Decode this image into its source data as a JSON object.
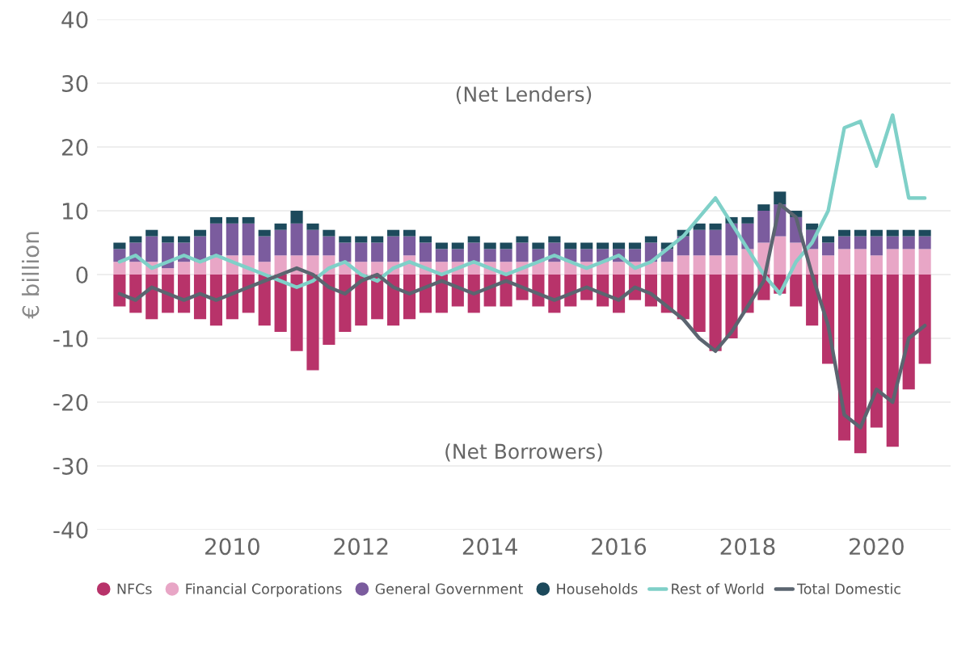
{
  "chart_data": {
    "type": "bar",
    "stacked": true,
    "ylabel": "€ billion",
    "annotations": [
      "(Net Lenders)",
      "(Net Borrowers)"
    ],
    "x": [
      2008.25,
      2008.5,
      2008.75,
      2009,
      2009.25,
      2009.5,
      2009.75,
      2010,
      2010.25,
      2010.5,
      2010.75,
      2011,
      2011.25,
      2011.5,
      2011.75,
      2012,
      2012.25,
      2012.5,
      2012.75,
      2013,
      2013.25,
      2013.5,
      2013.75,
      2014,
      2014.25,
      2014.5,
      2014.75,
      2015,
      2015.25,
      2015.5,
      2015.75,
      2016,
      2016.25,
      2016.5,
      2016.75,
      2017,
      2017.25,
      2017.5,
      2017.75,
      2018,
      2018.25,
      2018.5,
      2018.75,
      2019,
      2019.25,
      2019.5,
      2019.75,
      2020,
      2020.25,
      2020.5,
      2020.75
    ],
    "xlim": [
      2007.9,
      2021.15
    ],
    "xticks": [
      2010,
      2012,
      2014,
      2016,
      2018,
      2020
    ],
    "ylim": [
      -40,
      40
    ],
    "yticks": [
      -40,
      -30,
      -20,
      -10,
      0,
      10,
      20,
      30,
      40
    ],
    "grid": "y",
    "legend": "bottom",
    "series": [
      {
        "name": "NFCs",
        "color": "#b8336a",
        "values": [
          -5,
          -6,
          -7,
          -6,
          -6,
          -7,
          -8,
          -7,
          -6,
          -8,
          -9,
          -12,
          -15,
          -11,
          -9,
          -8,
          -7,
          -8,
          -7,
          -6,
          -6,
          -5,
          -6,
          -5,
          -5,
          -4,
          -5,
          -6,
          -5,
          -4,
          -5,
          -6,
          -4,
          -5,
          -6,
          -7,
          -9,
          -12,
          -10,
          -6,
          -4,
          -3,
          -5,
          -8,
          -14,
          -26,
          -28,
          -24,
          -27,
          -18,
          -14
        ]
      },
      {
        "name": "Financial Corporations",
        "color": "#e8a6c6",
        "values": [
          2,
          2,
          2,
          1,
          2,
          2,
          3,
          3,
          3,
          2,
          3,
          3,
          3,
          3,
          2,
          2,
          2,
          2,
          3,
          2,
          2,
          2,
          2,
          2,
          2,
          2,
          2,
          2,
          2,
          2,
          2,
          2,
          2,
          2,
          2,
          3,
          3,
          3,
          3,
          4,
          5,
          6,
          5,
          4,
          3,
          4,
          4,
          3,
          4,
          4,
          4
        ]
      },
      {
        "name": "General Government",
        "color": "#7b5c9e",
        "values": [
          2,
          3,
          4,
          4,
          3,
          4,
          5,
          5,
          5,
          4,
          4,
          5,
          4,
          3,
          3,
          3,
          3,
          4,
          3,
          3,
          2,
          2,
          3,
          2,
          2,
          3,
          2,
          3,
          2,
          2,
          2,
          2,
          2,
          3,
          2,
          3,
          4,
          4,
          5,
          4,
          5,
          5,
          4,
          3,
          2,
          2,
          2,
          3,
          2,
          2,
          2
        ]
      },
      {
        "name": "Households",
        "color": "#1d4a5c",
        "values": [
          1,
          1,
          1,
          1,
          1,
          1,
          1,
          1,
          1,
          1,
          1,
          2,
          1,
          1,
          1,
          1,
          1,
          1,
          1,
          1,
          1,
          1,
          1,
          1,
          1,
          1,
          1,
          1,
          1,
          1,
          1,
          1,
          1,
          1,
          1,
          1,
          1,
          1,
          1,
          1,
          1,
          2,
          1,
          1,
          1,
          1,
          1,
          1,
          1,
          1,
          1
        ]
      },
      {
        "name": "Rest of World",
        "type": "line",
        "color": "#7fd0c8",
        "values": [
          2,
          3,
          1,
          2,
          3,
          2,
          3,
          2,
          1,
          0,
          -1,
          -2,
          -1,
          1,
          2,
          0,
          -1,
          1,
          2,
          1,
          0,
          1,
          2,
          1,
          0,
          1,
          2,
          3,
          2,
          1,
          2,
          3,
          1,
          2,
          4,
          6,
          9,
          12,
          8,
          4,
          0,
          -3,
          2,
          5,
          10,
          23,
          24,
          17,
          25,
          12,
          12
        ]
      },
      {
        "name": "Total Domestic",
        "type": "line",
        "color": "#5b6570",
        "values": [
          -3,
          -4,
          -2,
          -3,
          -4,
          -3,
          -4,
          -3,
          -2,
          -1,
          0,
          1,
          0,
          -2,
          -3,
          -1,
          0,
          -2,
          -3,
          -2,
          -1,
          -2,
          -3,
          -2,
          -1,
          -2,
          -3,
          -4,
          -3,
          -2,
          -3,
          -4,
          -2,
          -3,
          -5,
          -7,
          -10,
          -12,
          -9,
          -5,
          -1,
          11,
          9,
          0,
          -8,
          -22,
          -24,
          -18,
          -20,
          -10,
          -8
        ]
      }
    ]
  }
}
